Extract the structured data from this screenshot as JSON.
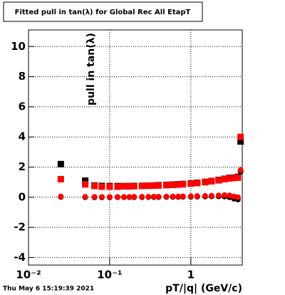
{
  "chart_data": {
    "type": "scatter",
    "title": "Fitted pull in tan(λ) for Global Rec All EtapT",
    "y_label": "pull in tan(λ)",
    "x_label": "pT/|q| (GeV/c)",
    "timestamp": "Thu May  6 15:19:39 2021",
    "x_scale": "log",
    "grid": true,
    "xlim": [
      0.01,
      4.3
    ],
    "ylim": [
      -4.5,
      11.1
    ],
    "xticks": [
      {
        "value": 0.01,
        "label": "10⁻²"
      },
      {
        "value": 0.1,
        "label": "10⁻¹"
      },
      1
    ],
    "yticks": [
      -4,
      -2,
      0,
      2,
      4,
      6,
      8,
      10
    ],
    "x": [
      0.025,
      0.05,
      0.065,
      0.08,
      0.1,
      0.125,
      0.15,
      0.175,
      0.2,
      0.25,
      0.3,
      0.35,
      0.4,
      0.5,
      0.6,
      0.7,
      0.8,
      1.0,
      1.2,
      1.5,
      1.8,
      2.2,
      2.6,
      3.0,
      3.4,
      3.8,
      4.1
    ],
    "series": [
      {
        "color": "#000000",
        "marker": "square",
        "values": [
          2.2,
          1.1,
          0.78,
          0.75,
          0.74,
          0.74,
          0.74,
          0.74,
          0.75,
          0.76,
          0.77,
          0.78,
          0.8,
          0.82,
          0.84,
          0.86,
          0.88,
          0.92,
          0.96,
          1.02,
          1.08,
          1.15,
          1.22,
          1.28,
          1.3,
          1.35,
          3.7
        ]
      },
      {
        "color": "#ff0000",
        "marker": "square",
        "values": [
          1.2,
          0.85,
          0.75,
          0.7,
          0.7,
          0.7,
          0.72,
          0.72,
          0.73,
          0.75,
          0.76,
          0.77,
          0.78,
          0.8,
          0.82,
          0.84,
          0.86,
          0.9,
          0.94,
          1.0,
          1.06,
          1.12,
          1.2,
          1.25,
          1.28,
          1.3,
          4.0
        ]
      },
      {
        "color": "#000000",
        "marker": "circle",
        "values": [
          0.02,
          0.0,
          -0.01,
          -0.01,
          -0.01,
          0.0,
          0.0,
          0.0,
          0.0,
          0.0,
          0.01,
          0.01,
          0.01,
          0.02,
          0.02,
          0.02,
          0.03,
          0.03,
          0.04,
          0.05,
          0.06,
          0.06,
          0.05,
          0.0,
          -0.1,
          -0.15,
          1.7
        ]
      },
      {
        "color": "#ff0000",
        "marker": "circle",
        "values": [
          0.05,
          0.03,
          0.02,
          0.02,
          0.02,
          0.02,
          0.02,
          0.02,
          0.03,
          0.03,
          0.03,
          0.04,
          0.04,
          0.04,
          0.05,
          0.05,
          0.06,
          0.07,
          0.08,
          0.09,
          0.1,
          0.12,
          0.14,
          0.12,
          0.05,
          0.0,
          1.8
        ]
      }
    ]
  }
}
